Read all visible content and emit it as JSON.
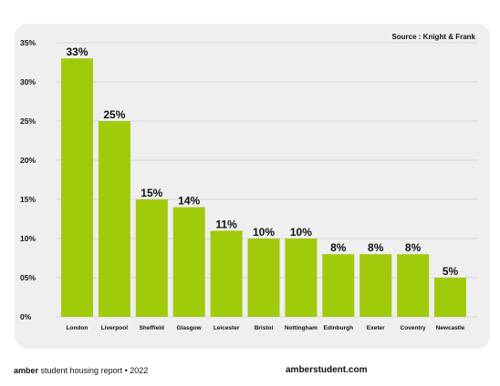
{
  "chart_data": {
    "type": "bar",
    "source": "Source : Knight & Frank",
    "categories": [
      "London",
      "Liverpool",
      "Sheffield",
      "Glasgow",
      "Leicester",
      "Bristol",
      "Nottingham",
      "Edinburgh",
      "Exeter",
      "Coventry",
      "Newcastle"
    ],
    "values": [
      33,
      25,
      15,
      14,
      11,
      10,
      10,
      8,
      8,
      8,
      5
    ],
    "data_labels": [
      "33%",
      "25%",
      "15%",
      "14%",
      "11%",
      "10%",
      "10%",
      "8%",
      "8%",
      "8%",
      "5%"
    ],
    "ylim": [
      0,
      35
    ],
    "yticks": [
      0,
      5,
      10,
      15,
      20,
      25,
      30,
      35
    ],
    "ytick_labels": [
      "0%",
      "05%",
      "10%",
      "15%",
      "20%",
      "25%",
      "30%",
      "35%"
    ],
    "bar_color": "#a0cb0b",
    "grid": true
  },
  "footer": {
    "brand": "amber",
    "report": " student housing report • 2022",
    "site": "amberstudent.com"
  }
}
